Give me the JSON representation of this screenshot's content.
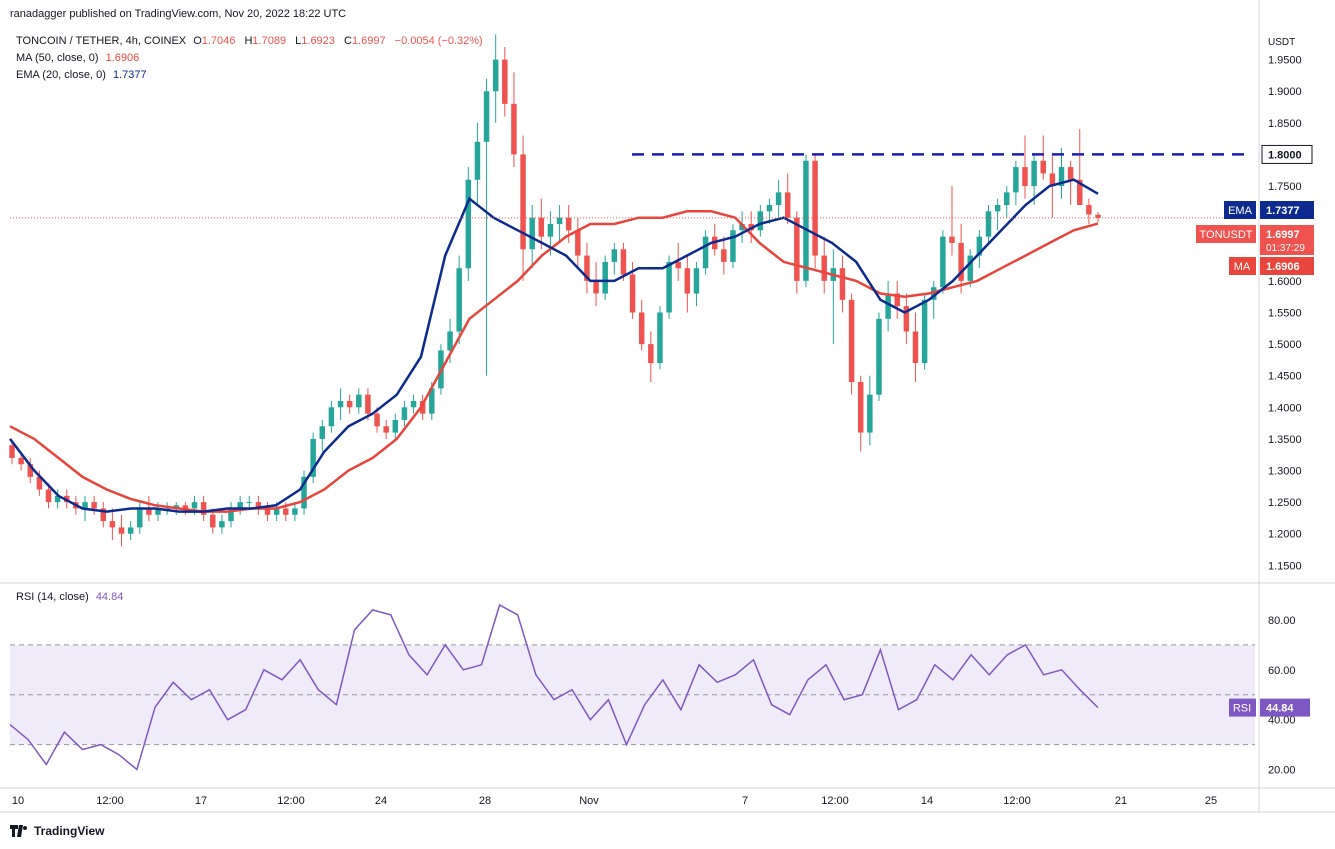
{
  "header": {
    "published": "ranadagger published on TradingView.com, Nov 20, 2022 18:22 UTC"
  },
  "legend": {
    "symbol": "TONCOIN / TETHER, 4h, COINEX",
    "o_label": "O",
    "o": "1.7046",
    "h_label": "H",
    "h": "1.7089",
    "l_label": "L",
    "l": "1.6923",
    "c_label": "C",
    "c": "1.6997",
    "change": "−0.0054 (−0.32%)",
    "ma_label": "MA (50, close, 0)",
    "ma_value": "1.6906",
    "ema_label": "EMA (20, close, 0)",
    "ema_value": "1.7377",
    "rsi_label": "RSI (14, close)",
    "rsi_value": "44.84"
  },
  "footer": {
    "brand": "TradingView"
  },
  "colors": {
    "up": "#26a69a",
    "down": "#ef5350",
    "ema": "#0d2b8e",
    "ma": "#e8453c",
    "rsi": "#7e57c2",
    "rsi_band": "rgba(126,87,194,0.12)",
    "resistance": "#1e1eb4",
    "grid": "#f0f3fa",
    "axis_text": "#131722"
  },
  "chart_data": [
    {
      "type": "candlestick",
      "title": "TONCOIN / TETHER, 4h, COINEX",
      "currency": "USDT",
      "ylim": [
        1.13,
        2.0
      ],
      "y_ticks": [
        "1.1500",
        "1.2000",
        "1.2500",
        "1.3000",
        "1.3500",
        "1.4000",
        "1.4500",
        "1.5000",
        "1.5500",
        "1.6000",
        "1.7500",
        "1.8500",
        "1.9000",
        "1.9500"
      ],
      "x_ticks": [
        "10",
        "12:00",
        "17",
        "12:00",
        "24",
        "28",
        "Nov",
        "7",
        "12:00",
        "14",
        "12:00",
        "21",
        "25"
      ],
      "resistance_level": 1.8,
      "resistance_label": "1.8000",
      "price_labels": [
        {
          "name": "EMA",
          "value": "1.7377"
        },
        {
          "name": "TONUSDT",
          "value": "1.6997",
          "countdown": "01:37:29"
        },
        {
          "name": "MA",
          "value": "1.6906"
        }
      ],
      "ohlc": [
        [
          1.34,
          1.345,
          1.31,
          1.32
        ],
        [
          1.32,
          1.33,
          1.3,
          1.31
        ],
        [
          1.31,
          1.32,
          1.28,
          1.29
        ],
        [
          1.29,
          1.3,
          1.26,
          1.27
        ],
        [
          1.27,
          1.28,
          1.24,
          1.25
        ],
        [
          1.25,
          1.27,
          1.24,
          1.26
        ],
        [
          1.26,
          1.27,
          1.24,
          1.25
        ],
        [
          1.25,
          1.26,
          1.23,
          1.24
        ],
        [
          1.24,
          1.26,
          1.22,
          1.25
        ],
        [
          1.25,
          1.26,
          1.23,
          1.24
        ],
        [
          1.24,
          1.25,
          1.21,
          1.22
        ],
        [
          1.22,
          1.24,
          1.19,
          1.21
        ],
        [
          1.21,
          1.23,
          1.18,
          1.2
        ],
        [
          1.2,
          1.22,
          1.19,
          1.21
        ],
        [
          1.21,
          1.25,
          1.2,
          1.24
        ],
        [
          1.24,
          1.26,
          1.22,
          1.23
        ],
        [
          1.23,
          1.25,
          1.22,
          1.24
        ],
        [
          1.24,
          1.25,
          1.23,
          1.24
        ],
        [
          1.24,
          1.25,
          1.23,
          1.245
        ],
        [
          1.245,
          1.25,
          1.23,
          1.24
        ],
        [
          1.24,
          1.26,
          1.23,
          1.25
        ],
        [
          1.25,
          1.26,
          1.22,
          1.23
        ],
        [
          1.23,
          1.24,
          1.2,
          1.21
        ],
        [
          1.21,
          1.23,
          1.2,
          1.22
        ],
        [
          1.22,
          1.25,
          1.21,
          1.24
        ],
        [
          1.24,
          1.26,
          1.23,
          1.25
        ],
        [
          1.25,
          1.26,
          1.24,
          1.25
        ],
        [
          1.25,
          1.26,
          1.23,
          1.24
        ],
        [
          1.24,
          1.25,
          1.22,
          1.23
        ],
        [
          1.23,
          1.25,
          1.22,
          1.24
        ],
        [
          1.24,
          1.25,
          1.22,
          1.23
        ],
        [
          1.23,
          1.25,
          1.22,
          1.24
        ],
        [
          1.24,
          1.3,
          1.23,
          1.29
        ],
        [
          1.29,
          1.36,
          1.28,
          1.35
        ],
        [
          1.35,
          1.38,
          1.33,
          1.37
        ],
        [
          1.37,
          1.41,
          1.36,
          1.4
        ],
        [
          1.4,
          1.43,
          1.38,
          1.41
        ],
        [
          1.41,
          1.42,
          1.39,
          1.4
        ],
        [
          1.4,
          1.43,
          1.39,
          1.42
        ],
        [
          1.42,
          1.43,
          1.38,
          1.39
        ],
        [
          1.39,
          1.4,
          1.36,
          1.37
        ],
        [
          1.37,
          1.38,
          1.35,
          1.36
        ],
        [
          1.36,
          1.39,
          1.35,
          1.38
        ],
        [
          1.38,
          1.41,
          1.37,
          1.4
        ],
        [
          1.4,
          1.42,
          1.39,
          1.41
        ],
        [
          1.41,
          1.42,
          1.38,
          1.39
        ],
        [
          1.39,
          1.44,
          1.38,
          1.43
        ],
        [
          1.43,
          1.5,
          1.42,
          1.49
        ],
        [
          1.49,
          1.54,
          1.47,
          1.52
        ],
        [
          1.52,
          1.64,
          1.5,
          1.62
        ],
        [
          1.62,
          1.78,
          1.6,
          1.76
        ],
        [
          1.76,
          1.85,
          1.72,
          1.82
        ],
        [
          1.82,
          1.92,
          1.45,
          1.9
        ],
        [
          1.9,
          1.99,
          1.85,
          1.95
        ],
        [
          1.95,
          1.97,
          1.86,
          1.88
        ],
        [
          1.88,
          1.93,
          1.78,
          1.8
        ],
        [
          1.8,
          1.83,
          1.6,
          1.65
        ],
        [
          1.65,
          1.72,
          1.62,
          1.7
        ],
        [
          1.7,
          1.73,
          1.65,
          1.67
        ],
        [
          1.67,
          1.71,
          1.64,
          1.69
        ],
        [
          1.69,
          1.72,
          1.66,
          1.7
        ],
        [
          1.7,
          1.72,
          1.66,
          1.68
        ],
        [
          1.68,
          1.7,
          1.62,
          1.64
        ],
        [
          1.64,
          1.66,
          1.58,
          1.6
        ],
        [
          1.6,
          1.63,
          1.56,
          1.58
        ],
        [
          1.58,
          1.64,
          1.57,
          1.63
        ],
        [
          1.63,
          1.66,
          1.61,
          1.65
        ],
        [
          1.65,
          1.66,
          1.6,
          1.61
        ],
        [
          1.61,
          1.63,
          1.54,
          1.55
        ],
        [
          1.55,
          1.57,
          1.49,
          1.5
        ],
        [
          1.5,
          1.52,
          1.44,
          1.47
        ],
        [
          1.47,
          1.56,
          1.46,
          1.55
        ],
        [
          1.55,
          1.64,
          1.54,
          1.63
        ],
        [
          1.63,
          1.66,
          1.6,
          1.62
        ],
        [
          1.62,
          1.64,
          1.55,
          1.58
        ],
        [
          1.58,
          1.63,
          1.56,
          1.62
        ],
        [
          1.62,
          1.68,
          1.61,
          1.67
        ],
        [
          1.67,
          1.69,
          1.64,
          1.65
        ],
        [
          1.65,
          1.67,
          1.61,
          1.63
        ],
        [
          1.63,
          1.69,
          1.62,
          1.68
        ],
        [
          1.68,
          1.71,
          1.66,
          1.69
        ],
        [
          1.69,
          1.71,
          1.66,
          1.68
        ],
        [
          1.68,
          1.72,
          1.67,
          1.71
        ],
        [
          1.71,
          1.73,
          1.69,
          1.72
        ],
        [
          1.72,
          1.76,
          1.7,
          1.74
        ],
        [
          1.74,
          1.77,
          1.69,
          1.7
        ],
        [
          1.7,
          1.71,
          1.58,
          1.6
        ],
        [
          1.6,
          1.8,
          1.59,
          1.79
        ],
        [
          1.79,
          1.8,
          1.62,
          1.64
        ],
        [
          1.64,
          1.67,
          1.58,
          1.6
        ],
        [
          1.6,
          1.65,
          1.5,
          1.62
        ],
        [
          1.62,
          1.64,
          1.55,
          1.57
        ],
        [
          1.57,
          1.58,
          1.42,
          1.44
        ],
        [
          1.44,
          1.45,
          1.33,
          1.36
        ],
        [
          1.36,
          1.45,
          1.34,
          1.42
        ],
        [
          1.42,
          1.55,
          1.41,
          1.54
        ],
        [
          1.54,
          1.6,
          1.52,
          1.58
        ],
        [
          1.58,
          1.6,
          1.54,
          1.56
        ],
        [
          1.56,
          1.58,
          1.5,
          1.52
        ],
        [
          1.52,
          1.55,
          1.44,
          1.47
        ],
        [
          1.47,
          1.58,
          1.46,
          1.57
        ],
        [
          1.57,
          1.6,
          1.54,
          1.59
        ],
        [
          1.59,
          1.68,
          1.58,
          1.67
        ],
        [
          1.67,
          1.75,
          1.64,
          1.66
        ],
        [
          1.66,
          1.69,
          1.58,
          1.6
        ],
        [
          1.6,
          1.65,
          1.59,
          1.64
        ],
        [
          1.64,
          1.68,
          1.62,
          1.67
        ],
        [
          1.67,
          1.72,
          1.66,
          1.71
        ],
        [
          1.71,
          1.73,
          1.68,
          1.72
        ],
        [
          1.72,
          1.75,
          1.7,
          1.74
        ],
        [
          1.74,
          1.79,
          1.72,
          1.78
        ],
        [
          1.78,
          1.83,
          1.73,
          1.75
        ],
        [
          1.75,
          1.8,
          1.72,
          1.79
        ],
        [
          1.79,
          1.83,
          1.76,
          1.77
        ],
        [
          1.77,
          1.8,
          1.7,
          1.75
        ],
        [
          1.75,
          1.81,
          1.73,
          1.78
        ],
        [
          1.78,
          1.79,
          1.72,
          1.76
        ],
        [
          1.76,
          1.84,
          1.72,
          1.72
        ],
        [
          1.72,
          1.73,
          1.69,
          1.705
        ],
        [
          1.7046,
          1.7089,
          1.6923,
          1.6997
        ]
      ],
      "ema20": [
        1.35,
        1.3,
        1.26,
        1.24,
        1.235,
        1.24,
        1.24,
        1.235,
        1.235,
        1.24,
        1.24,
        1.245,
        1.27,
        1.33,
        1.37,
        1.39,
        1.42,
        1.48,
        1.64,
        1.73,
        1.7,
        1.68,
        1.66,
        1.64,
        1.6,
        1.6,
        1.62,
        1.62,
        1.64,
        1.66,
        1.67,
        1.69,
        1.7,
        1.68,
        1.66,
        1.63,
        1.57,
        1.55,
        1.57,
        1.6,
        1.64,
        1.68,
        1.72,
        1.75,
        1.76,
        1.7377
      ],
      "ma50": [
        1.37,
        1.35,
        1.32,
        1.29,
        1.27,
        1.255,
        1.245,
        1.24,
        1.235,
        1.235,
        1.24,
        1.24,
        1.25,
        1.27,
        1.3,
        1.32,
        1.35,
        1.4,
        1.47,
        1.54,
        1.57,
        1.6,
        1.64,
        1.67,
        1.69,
        1.69,
        1.7,
        1.7,
        1.71,
        1.71,
        1.7,
        1.66,
        1.63,
        1.62,
        1.61,
        1.6,
        1.58,
        1.575,
        1.58,
        1.59,
        1.6,
        1.62,
        1.64,
        1.66,
        1.68,
        1.6906
      ]
    },
    {
      "type": "line",
      "title": "RSI (14, close)",
      "ylim": [
        15,
        92
      ],
      "y_ticks": [
        "20.00",
        "40.00",
        "60.00",
        "80.00"
      ],
      "band": [
        30,
        70
      ],
      "midline": 50,
      "series": [
        {
          "name": "RSI (14, close)",
          "values": [
            38,
            32,
            22,
            35,
            28,
            30,
            26,
            20,
            45,
            55,
            48,
            52,
            40,
            44,
            60,
            56,
            64,
            52,
            46,
            76,
            84,
            82,
            66,
            58,
            70,
            60,
            62,
            86,
            82,
            58,
            48,
            52,
            40,
            48,
            30,
            46,
            56,
            44,
            62,
            55,
            58,
            64,
            46,
            42,
            56,
            62,
            48,
            50,
            68,
            44,
            48,
            62,
            56,
            66,
            58,
            66,
            70,
            58,
            60,
            52,
            44.84
          ]
        }
      ]
    }
  ]
}
